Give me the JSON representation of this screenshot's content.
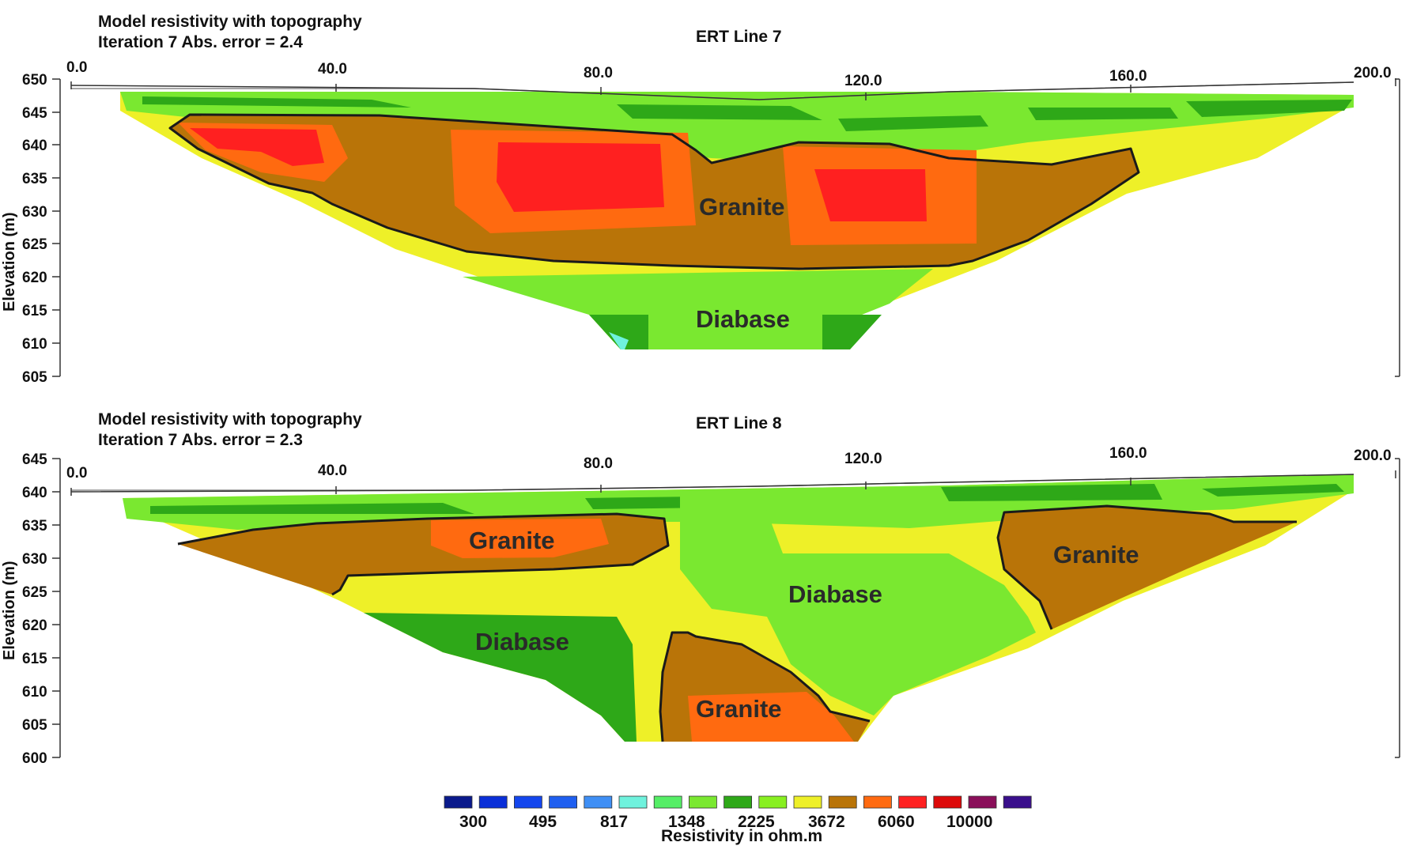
{
  "panels": [
    {
      "header_line1": "Model resistivity with topography",
      "header_line2": "Iteration 7 Abs. error = 2.4",
      "title": "ERT Line 7",
      "y_ticks": [
        "650",
        "645",
        "640",
        "635",
        "630",
        "625",
        "620",
        "615",
        "610",
        "605"
      ],
      "x_ticks": [
        "0.0",
        "40.0",
        "80.0",
        "120.0",
        "160.0",
        "200.0"
      ],
      "y_label": "Elevation (m)",
      "annotations": [
        "Granite",
        "Diabase"
      ]
    },
    {
      "header_line1": "Model resistivity with topography",
      "header_line2": "Iteration 7 Abs. error = 2.3",
      "title": "ERT Line 8",
      "y_ticks": [
        "645",
        "640",
        "635",
        "630",
        "625",
        "620",
        "615",
        "610",
        "605",
        "600"
      ],
      "x_ticks": [
        "0.0",
        "40.0",
        "80.0",
        "120.0",
        "160.0",
        "200.0"
      ],
      "y_label": "Elevation (m)",
      "annotations": [
        "Granite",
        "Granite",
        "Diabase",
        "Diabase",
        "Granite"
      ]
    }
  ],
  "legend": {
    "colors": [
      "#0a1a8c",
      "#0a2fd8",
      "#1446ee",
      "#1f5ff0",
      "#3f8ff5",
      "#6ff2dd",
      "#55ee66",
      "#7ae830",
      "#2ea818",
      "#88f020",
      "#eef028",
      "#b97408",
      "#ff6a10",
      "#ff2020",
      "#dd0a0a",
      "#8a0f5a",
      "#3a0f8c"
    ],
    "values": [
      "300",
      "495",
      "817",
      "1348",
      "2225",
      "3672",
      "6060",
      "10000"
    ],
    "title": "Resistivity in ohm.m"
  }
}
